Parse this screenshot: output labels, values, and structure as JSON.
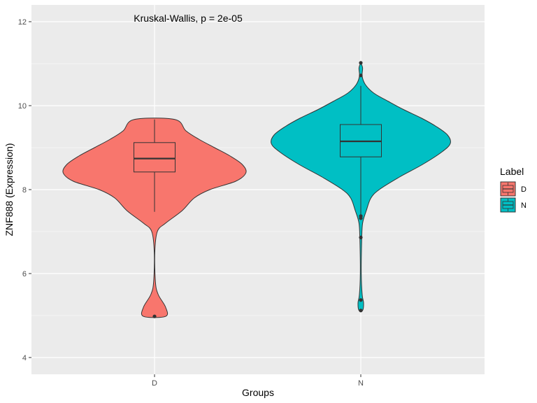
{
  "chart_data": {
    "type": "violin",
    "xlabel": "Groups",
    "ylabel": "ZNF888  (Expression)",
    "annotation": "Kruskal-Wallis, p = 2e-05",
    "categories": [
      "D",
      "N"
    ],
    "ylim": [
      3.6,
      12.4
    ],
    "yticks": [
      4,
      6,
      8,
      10,
      12
    ],
    "grid": true,
    "legend": {
      "title": "Label",
      "placement": "right",
      "entries": [
        {
          "label": "D",
          "color": "#F8766D"
        },
        {
          "label": "N",
          "color": "#00BFC4"
        }
      ]
    },
    "series": [
      {
        "name": "D",
        "color": "#F8766D",
        "box": {
          "q1": 8.42,
          "median": 8.74,
          "q3": 9.12,
          "whisker_low": 7.47,
          "whisker_high": 9.67
        },
        "outliers": [
          4.98
        ],
        "violin": [
          [
            4.98,
            0.12
          ],
          [
            5.2,
            0.12
          ],
          [
            5.5,
            0.04
          ],
          [
            5.8,
            0.01
          ],
          [
            6.5,
            0.003
          ],
          [
            7.0,
            0.03
          ],
          [
            7.2,
            0.12
          ],
          [
            7.5,
            0.3
          ],
          [
            7.8,
            0.43
          ],
          [
            8.0,
            0.6
          ],
          [
            8.2,
            0.88
          ],
          [
            8.4,
            0.99
          ],
          [
            8.6,
            0.95
          ],
          [
            8.8,
            0.82
          ],
          [
            9.0,
            0.65
          ],
          [
            9.2,
            0.48
          ],
          [
            9.4,
            0.34
          ],
          [
            9.67,
            0.22
          ]
        ]
      },
      {
        "name": "N",
        "color": "#00BFC4",
        "box": {
          "q1": 8.78,
          "median": 9.15,
          "q3": 9.55,
          "whisker_low": 7.37,
          "whisker_high": 10.47
        },
        "outliers": [
          7.37,
          7.32,
          6.86,
          5.37,
          5.12,
          10.72,
          11.02
        ],
        "violin": [
          [
            5.12,
            0.02
          ],
          [
            5.3,
            0.03
          ],
          [
            5.5,
            0.015
          ],
          [
            6.0,
            0.005
          ],
          [
            6.8,
            0.01
          ],
          [
            7.2,
            0.02
          ],
          [
            7.5,
            0.06
          ],
          [
            7.8,
            0.11
          ],
          [
            8.0,
            0.2
          ],
          [
            8.3,
            0.42
          ],
          [
            8.6,
            0.67
          ],
          [
            8.9,
            0.88
          ],
          [
            9.1,
            0.97
          ],
          [
            9.3,
            0.94
          ],
          [
            9.5,
            0.82
          ],
          [
            9.7,
            0.66
          ],
          [
            9.9,
            0.47
          ],
          [
            10.1,
            0.3
          ],
          [
            10.3,
            0.14
          ],
          [
            10.5,
            0.05
          ],
          [
            10.7,
            0.015
          ],
          [
            10.9,
            0.02
          ],
          [
            11.02,
            0.0
          ]
        ]
      }
    ]
  }
}
